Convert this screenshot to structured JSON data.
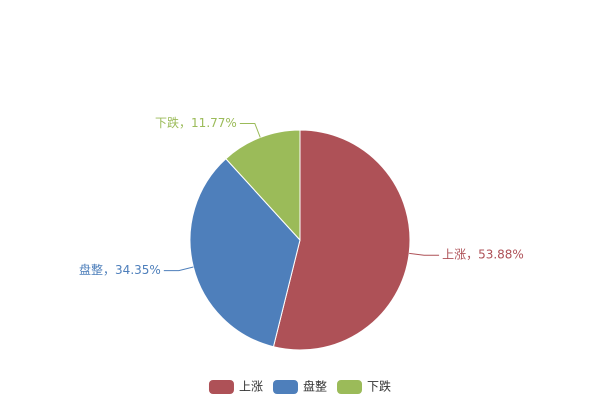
{
  "chart_data": {
    "type": "pie",
    "categories": [
      "上涨",
      "盘整",
      "下跌"
    ],
    "values": [
      53.88,
      34.35,
      11.77
    ],
    "value_labels": [
      "上涨，53.88%",
      "盘整，34.35%",
      "下跌，11.77%"
    ],
    "colors": [
      "#ae5157",
      "#4e7fbb",
      "#9bbb59"
    ],
    "legend": "bottom"
  }
}
